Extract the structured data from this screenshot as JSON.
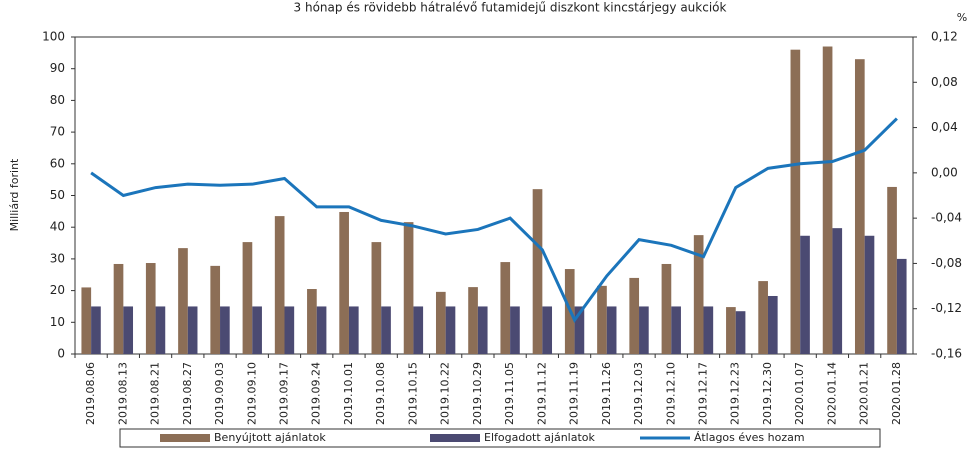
{
  "chart_data": {
    "type": "bar_line",
    "title": "3 hónap és rövidebb hátralévő futamidejű diszkont kincstárjegy aukciók",
    "y_label": "Milliárd forint",
    "y2_unit": "%",
    "categories": [
      "2019.08.06",
      "2019.08.13",
      "2019.08.21",
      "2019.08.27",
      "2019.09.03",
      "2019.09.10",
      "2019.09.17",
      "2019.09.24",
      "2019.10.01",
      "2019.10.08",
      "2019.10.15",
      "2019.10.22",
      "2019.10.29",
      "2019.11.05",
      "2019.11.12",
      "2019.11.19",
      "2019.11.26",
      "2019.12.03",
      "2019.12.10",
      "2019.12.17",
      "2019.12.23",
      "2019.12.30",
      "2020.01.07",
      "2020.01.14",
      "2020.01.21",
      "2020.01.28"
    ],
    "series": [
      {
        "name": "Benyújtott ajánlatok",
        "color": "#8c6e56",
        "kind": "bar",
        "values": [
          21,
          28.4,
          28.7,
          33.4,
          27.8,
          35.3,
          43.5,
          20.5,
          44.8,
          35.3,
          41.6,
          19.6,
          21.1,
          29,
          52,
          26.8,
          21.5,
          24,
          28.4,
          37.5,
          14.8,
          23,
          96,
          97,
          93,
          52.7
        ]
      },
      {
        "name": "Elfogadott ajánlatok",
        "color": "#4b4a72",
        "kind": "bar",
        "values": [
          15,
          15,
          15,
          15,
          15,
          15,
          15,
          15,
          15,
          15,
          15,
          15,
          15,
          15,
          15,
          15,
          15,
          15,
          15,
          15,
          13.5,
          18.3,
          37.3,
          39.7,
          37.3,
          30
        ]
      },
      {
        "name": "Átlagos éves hozam",
        "color": "#1b75bb",
        "kind": "line",
        "axis": "y2",
        "values": [
          0,
          -0.02,
          -0.013,
          -0.01,
          -0.011,
          -0.01,
          -0.005,
          -0.03,
          -0.03,
          -0.042,
          -0.047,
          -0.054,
          -0.05,
          -0.04,
          -0.068,
          -0.13,
          -0.091,
          -0.059,
          -0.064,
          -0.074,
          -0.013,
          0.004,
          0.008,
          0.01,
          0.02,
          0.048
        ]
      }
    ],
    "ylim": [
      0,
      100
    ],
    "yticks": [
      0,
      10,
      20,
      30,
      40,
      50,
      60,
      70,
      80,
      90,
      100
    ],
    "y2lim": [
      -0.16,
      0.12
    ],
    "y2ticks": [
      {
        "value": -0.16,
        "label": "-0,16"
      },
      {
        "value": -0.12,
        "label": "-0,12"
      },
      {
        "value": -0.08,
        "label": "-0,08"
      },
      {
        "value": -0.04,
        "label": "-0,04"
      },
      {
        "value": 0,
        "label": "0,00"
      },
      {
        "value": 0.04,
        "label": "0,04"
      },
      {
        "value": 0.08,
        "label": "0,08"
      },
      {
        "value": 0.12,
        "label": "0,12"
      }
    ],
    "legend": "bottom"
  }
}
